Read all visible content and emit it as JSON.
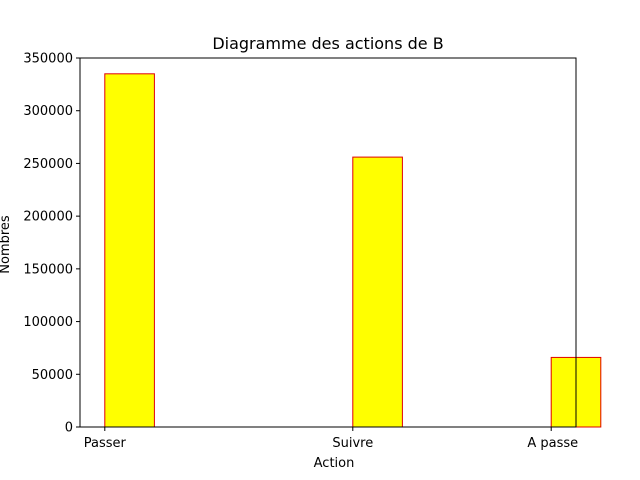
{
  "chart_data": {
    "type": "bar",
    "title": "Diagramme des actions de B",
    "xlabel": "Action",
    "ylabel": "Nombres",
    "categories": [
      "Passer",
      "Suivre",
      "A passe"
    ],
    "values": [
      335000,
      256000,
      66000
    ],
    "x_positions": [
      0,
      1,
      1.8
    ],
    "xlim": [
      -0.1,
      1.9
    ],
    "ylim": [
      0,
      350000
    ],
    "yticks": [
      0,
      50000,
      100000,
      150000,
      200000,
      250000,
      300000,
      350000
    ],
    "ytick_labels": [
      "0",
      "50000",
      "100000",
      "150000",
      "200000",
      "250000",
      "300000",
      "350000"
    ],
    "bar_width": 0.2,
    "bar_align": "left-edge-at-tick",
    "grid": false,
    "legend": null,
    "colors": {
      "bar_fill": "#ffff00",
      "bar_edge": "#e00000",
      "baseline": "#e00000",
      "axes": "#000000"
    }
  }
}
